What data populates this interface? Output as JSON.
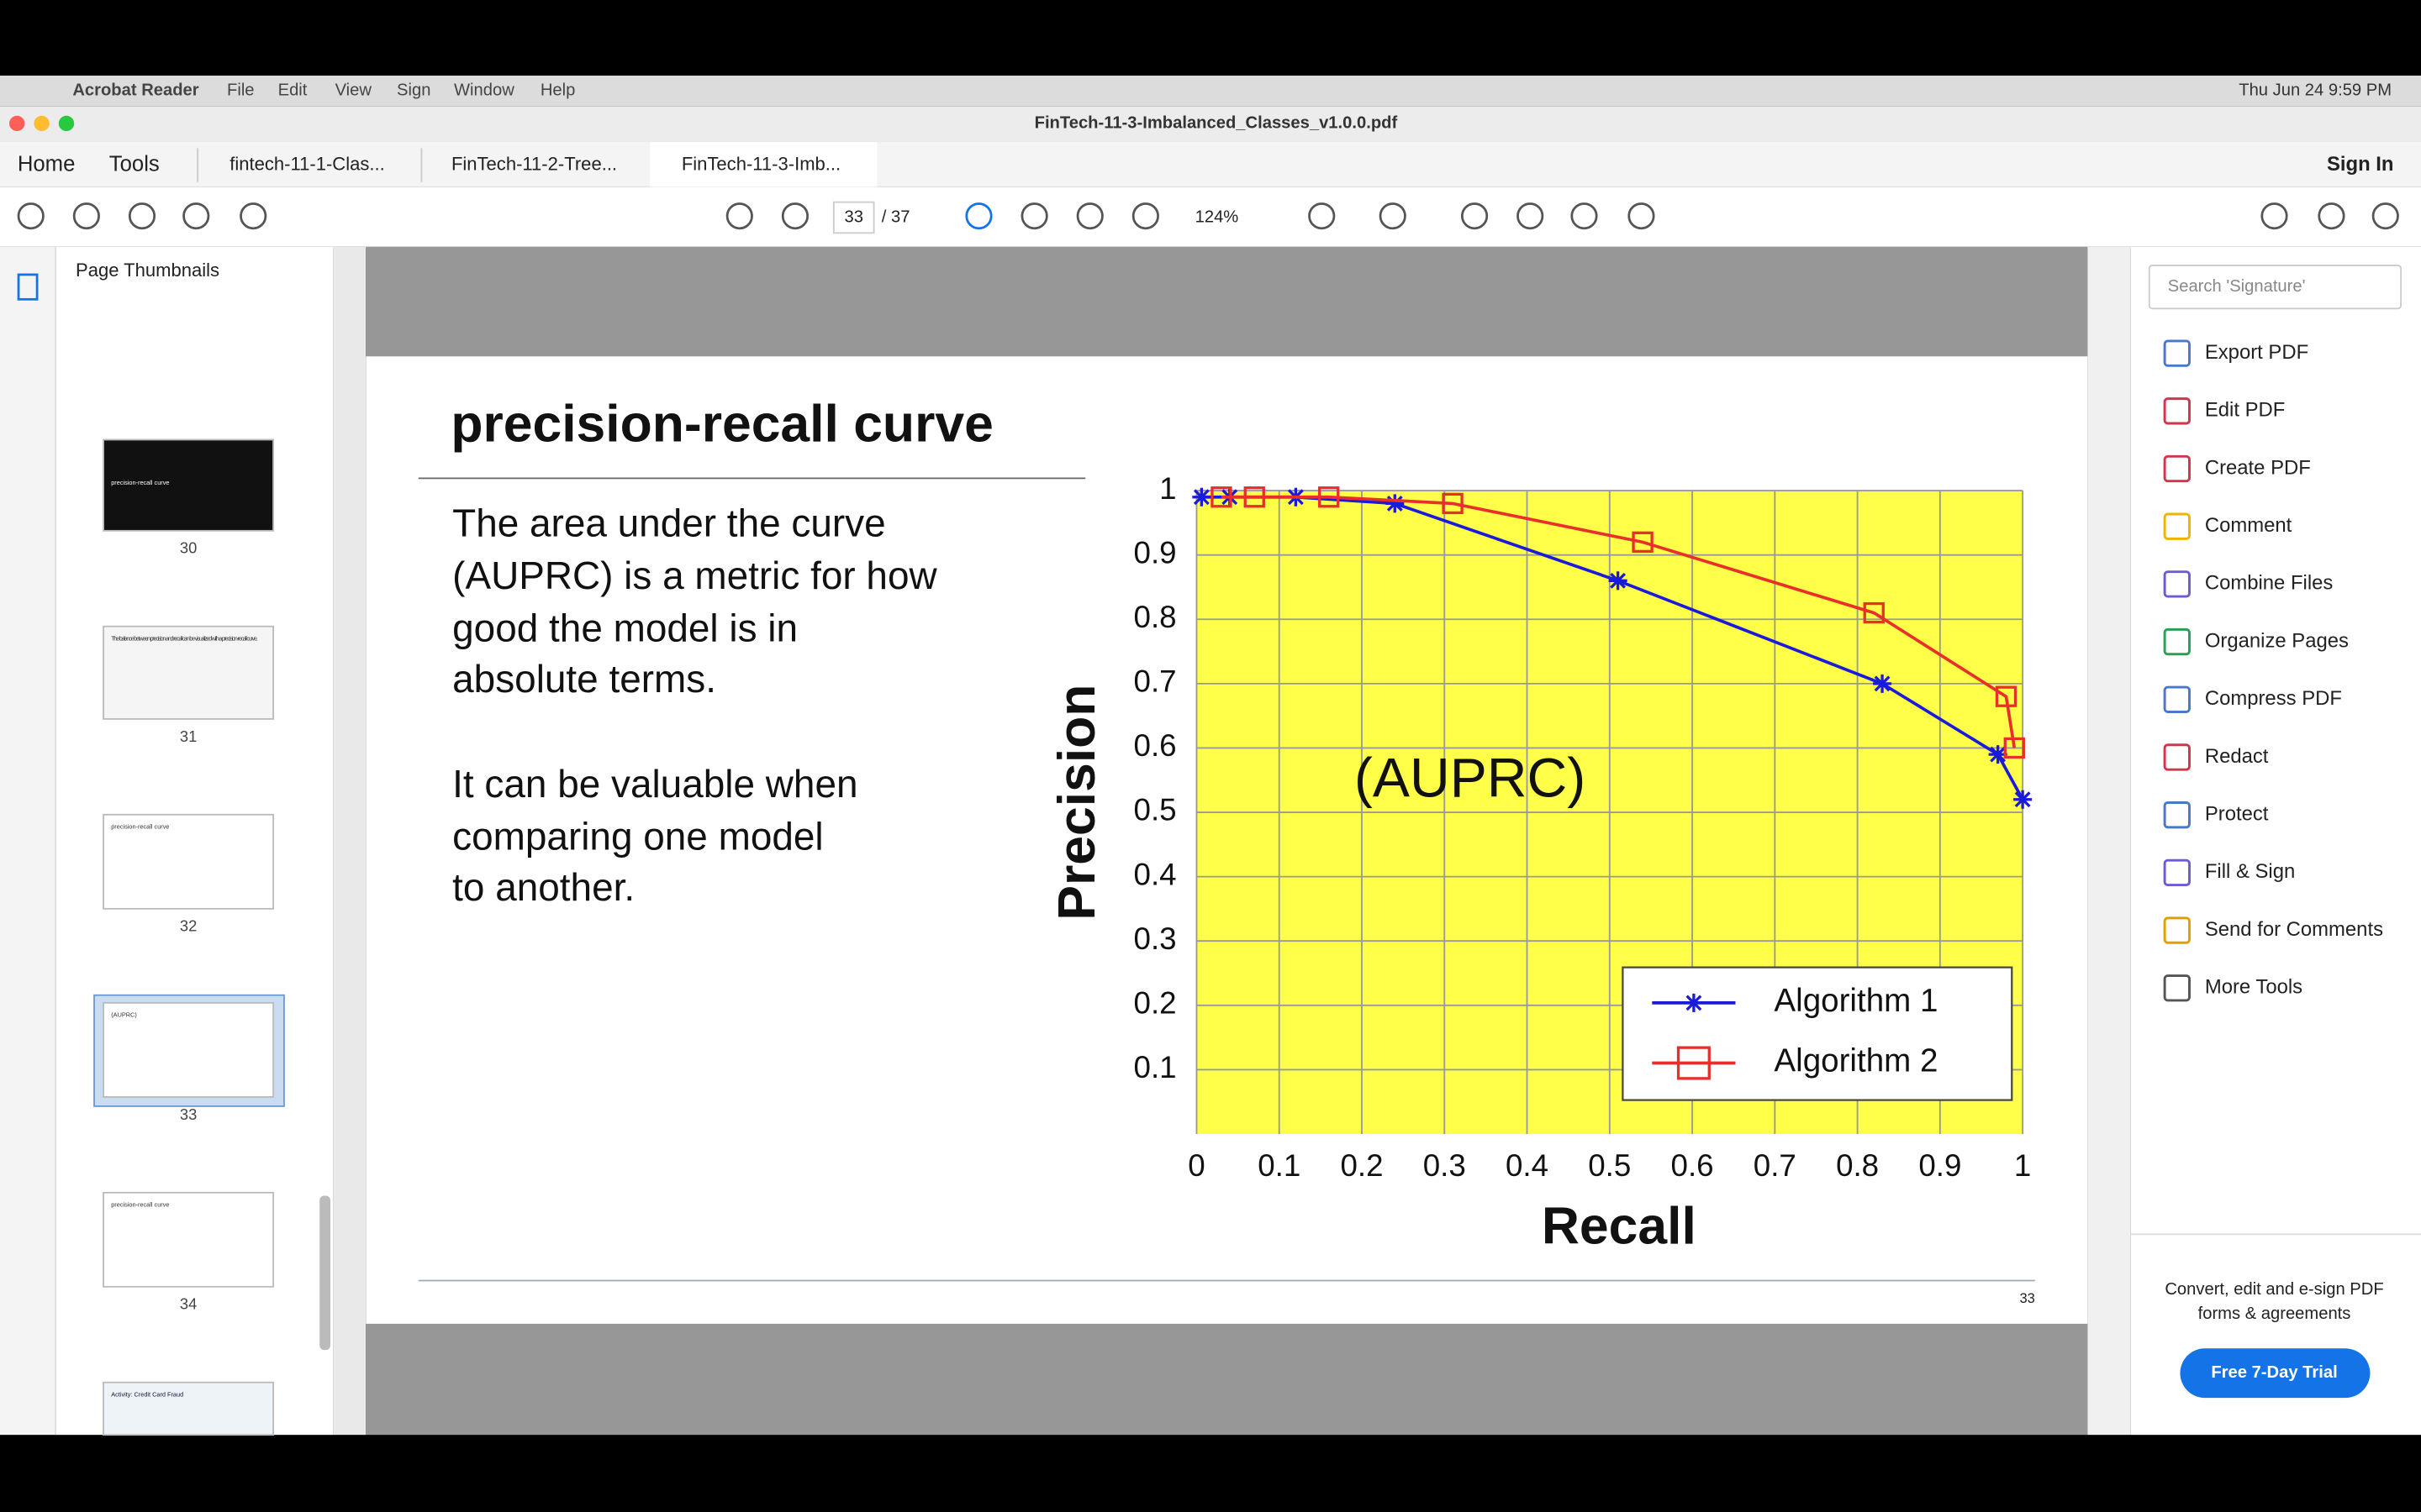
{
  "menu_bar": {
    "app": "Acrobat Reader",
    "menus": [
      "File",
      "Edit",
      "View",
      "Sign",
      "Window",
      "Help"
    ],
    "clock": "Thu Jun 24  9:59 PM"
  },
  "window_title": "FinTech-11-3-Imbalanced_Classes_v1.0.0.pdf",
  "tabs": {
    "nav": [
      "Home",
      "Tools"
    ],
    "documents": [
      "fintech-11-1-Clas...",
      "FinTech-11-2-Tree...",
      "FinTech-11-3-Imb..."
    ],
    "sign_in": "Sign In"
  },
  "toolbar": {
    "page": "33",
    "page_count": "/ 37",
    "zoom": "124%"
  },
  "thumbnails": {
    "title": "Page Thumbnails",
    "pages": [
      {
        "label": "30",
        "text": "precision-recall curve"
      },
      {
        "label": "31",
        "text": "The balance between precision and recall can be visualized with a precision-recall curve."
      },
      {
        "label": "32",
        "text": "precision-recall curve"
      },
      {
        "label": "33",
        "text": "(AUPRC)"
      },
      {
        "label": "34",
        "text": "precision-recall curve"
      },
      {
        "text": "Activity: Credit Card Fraud"
      }
    ]
  },
  "slide": {
    "title": "precision-recall curve",
    "paragraphs": [
      [
        "The area under the curve",
        "(AUPRC) is a metric for how",
        "good the model is in",
        "absolute terms."
      ],
      [
        "It can be valuable when",
        "comparing one model",
        "to another."
      ]
    ],
    "page_number": "33",
    "chart_data": {
      "type": "line",
      "xlabel": "Recall",
      "ylabel": "Precision",
      "annotation": "(AUPRC)",
      "xlim": [
        0,
        1
      ],
      "ylim": [
        0,
        1
      ],
      "xticks": [
        0,
        0.1,
        0.2,
        0.3,
        0.4,
        0.5,
        0.6,
        0.7,
        0.8,
        0.9,
        1
      ],
      "yticks": [
        0.1,
        0.2,
        0.3,
        0.4,
        0.5,
        0.6,
        0.7,
        0.8,
        0.9,
        1
      ],
      "grid": true,
      "legend": "lower right",
      "plot_background": "#ffff4a",
      "series": [
        {
          "name": "Algorithm 1",
          "color": "#1a1adb",
          "marker": "star",
          "x": [
            0.006,
            0.04,
            0.12,
            0.24,
            0.51,
            0.83,
            0.97,
            1.0
          ],
          "values": [
            0.99,
            0.99,
            0.99,
            0.98,
            0.86,
            0.7,
            0.59,
            0.52
          ]
        },
        {
          "name": "Algorithm 2",
          "color": "#e8302a",
          "marker": "square",
          "x": [
            0.03,
            0.07,
            0.16,
            0.31,
            0.54,
            0.82,
            0.98,
            0.99
          ],
          "values": [
            0.99,
            0.99,
            0.99,
            0.98,
            0.92,
            0.81,
            0.68,
            0.6
          ]
        }
      ]
    }
  },
  "tools_panel": {
    "search_placeholder": "Search 'Signature'",
    "tools": [
      "Export PDF",
      "Edit PDF",
      "Create PDF",
      "Comment",
      "Combine Files",
      "Organize Pages",
      "Compress PDF",
      "Redact",
      "Protect",
      "Fill & Sign",
      "Send for Comments",
      "More Tools"
    ],
    "promo": [
      "Convert, edit and e-sign PDF",
      "forms & agreements"
    ],
    "trial_button": "Free 7-Day Trial"
  }
}
